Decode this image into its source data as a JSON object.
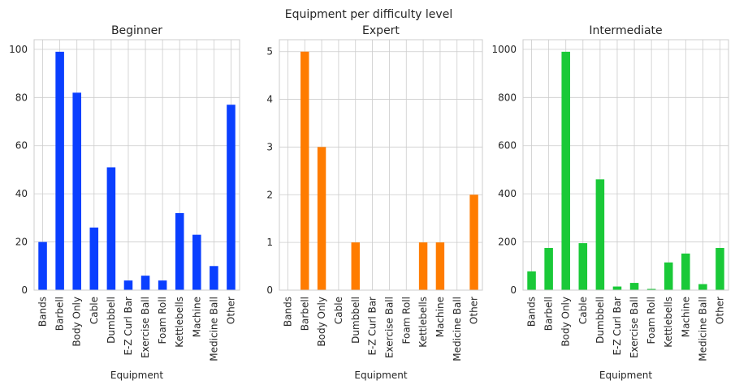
{
  "figure_title": "Equipment per difficulty level",
  "chart_data": [
    {
      "type": "bar",
      "title": "Beginner",
      "xlabel": "Equipment",
      "ylabel": "",
      "color": "#0a3fff",
      "categories": [
        "Bands",
        "Barbell",
        "Body Only",
        "Cable",
        "Dumbbell",
        "E-Z Curl Bar",
        "Exercise Ball",
        "Foam Roll",
        "Kettlebells",
        "Machine",
        "Medicine Ball",
        "Other"
      ],
      "values": [
        20,
        99,
        82,
        26,
        51,
        4,
        6,
        4,
        32,
        23,
        10,
        77
      ],
      "ylim": [
        0,
        104
      ],
      "yticks": [
        0,
        20,
        40,
        60,
        80,
        100
      ],
      "grid": true
    },
    {
      "type": "bar",
      "title": "Expert",
      "xlabel": "Equipment",
      "ylabel": "",
      "color": "#ff7c00",
      "categories": [
        "Bands",
        "Barbell",
        "Body Only",
        "Cable",
        "Dumbbell",
        "E-Z Curl Bar",
        "Exercise Ball",
        "Foam Roll",
        "Kettlebells",
        "Machine",
        "Medicine Ball",
        "Other"
      ],
      "values": [
        0,
        5,
        3,
        0,
        1,
        0,
        0,
        0,
        1,
        1,
        0,
        2
      ],
      "ylim": [
        0,
        5.25
      ],
      "yticks": [
        0,
        1,
        2,
        3,
        4,
        5
      ],
      "grid": true
    },
    {
      "type": "bar",
      "title": "Intermediate",
      "xlabel": "Equipment",
      "ylabel": "",
      "color": "#1ac938",
      "categories": [
        "Bands",
        "Barbell",
        "Body Only",
        "Cable",
        "Dumbbell",
        "E-Z Curl Bar",
        "Exercise Ball",
        "Foam Roll",
        "Kettlebells",
        "Machine",
        "Medicine Ball",
        "Other"
      ],
      "values": [
        78,
        175,
        990,
        195,
        460,
        15,
        30,
        5,
        115,
        152,
        25,
        175
      ],
      "ylim": [
        0,
        1040
      ],
      "yticks": [
        0,
        200,
        400,
        600,
        800,
        1000
      ],
      "grid": true
    }
  ]
}
